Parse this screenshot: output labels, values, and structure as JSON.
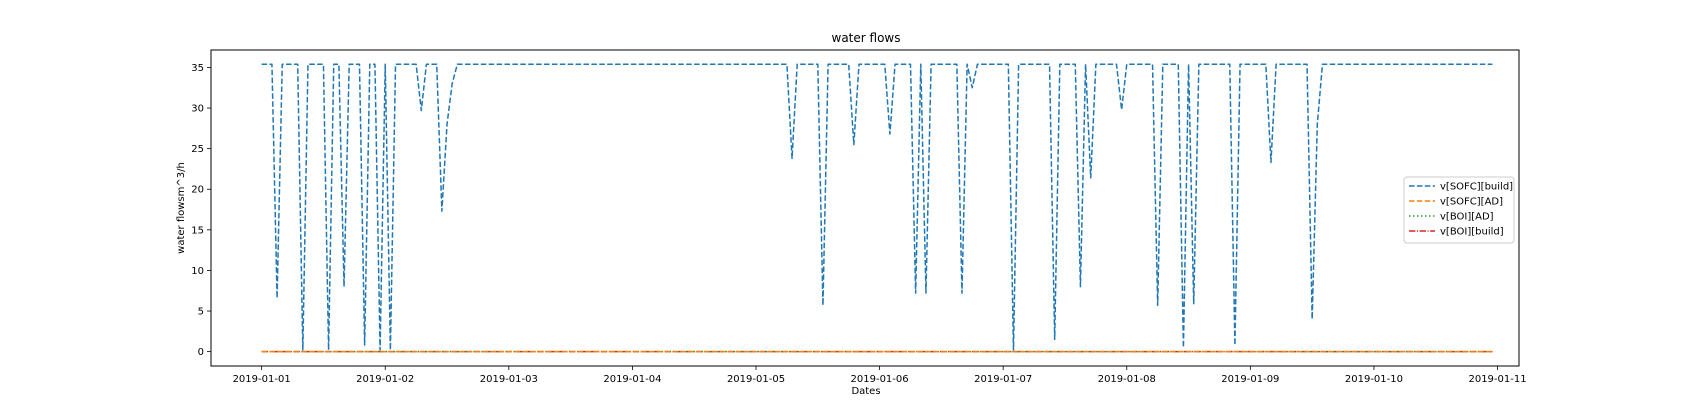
{
  "chart_data": {
    "type": "line",
    "title": "water flows",
    "xlabel": "Dates",
    "ylabel": "water flowsm^3/h",
    "x_type": "date",
    "xlim": [
      "2018-12-31T14:10",
      "2019-01-11T04:10"
    ],
    "ylim": [
      -1.77,
      37.15
    ],
    "x_ticks": [
      "2019-01-01",
      "2019-01-02",
      "2019-01-03",
      "2019-01-04",
      "2019-01-05",
      "2019-01-06",
      "2019-01-07",
      "2019-01-08",
      "2019-01-09",
      "2019-01-10",
      "2019-01-11"
    ],
    "y_ticks": [
      0,
      5,
      10,
      15,
      20,
      25,
      30,
      35
    ],
    "grid": false,
    "legend_position": "center-right",
    "series": [
      {
        "name": "v[SOFC][build]",
        "color": "#1f77b4",
        "style": "dashed",
        "points": [
          [
            "2019-01-01T00:00",
            35.4
          ],
          [
            "2019-01-01T02:00",
            35.4
          ],
          [
            "2019-01-01T03:00",
            6.6
          ],
          [
            "2019-01-01T04:00",
            35.4
          ],
          [
            "2019-01-01T07:00",
            35.4
          ],
          [
            "2019-01-01T08:00",
            0.2
          ],
          [
            "2019-01-01T09:00",
            35.4
          ],
          [
            "2019-01-01T12:00",
            35.4
          ],
          [
            "2019-01-01T13:00",
            0.2
          ],
          [
            "2019-01-01T14:00",
            35.4
          ],
          [
            "2019-01-01T15:00",
            35.4
          ],
          [
            "2019-01-01T16:00",
            8.0
          ],
          [
            "2019-01-01T17:00",
            35.4
          ],
          [
            "2019-01-01T19:00",
            35.4
          ],
          [
            "2019-01-01T20:00",
            0.8
          ],
          [
            "2019-01-01T21:00",
            35.4
          ],
          [
            "2019-01-01T22:00",
            35.4
          ],
          [
            "2019-01-01T23:00",
            0.2
          ],
          [
            "2019-01-02T00:00",
            35.4
          ],
          [
            "2019-01-02T01:00",
            0.2
          ],
          [
            "2019-01-02T02:00",
            35.4
          ],
          [
            "2019-01-02T06:00",
            35.4
          ],
          [
            "2019-01-02T07:00",
            29.7
          ],
          [
            "2019-01-02T08:00",
            35.4
          ],
          [
            "2019-01-02T10:00",
            35.4
          ],
          [
            "2019-01-02T11:00",
            17.3
          ],
          [
            "2019-01-02T12:00",
            28.0
          ],
          [
            "2019-01-02T13:00",
            33.0
          ],
          [
            "2019-01-02T14:00",
            35.4
          ],
          [
            "2019-01-05T06:00",
            35.4
          ],
          [
            "2019-01-05T07:00",
            23.8
          ],
          [
            "2019-01-05T08:00",
            35.4
          ],
          [
            "2019-01-05T12:00",
            35.4
          ],
          [
            "2019-01-05T13:00",
            5.7
          ],
          [
            "2019-01-05T14:00",
            35.4
          ],
          [
            "2019-01-05T18:00",
            35.4
          ],
          [
            "2019-01-05T19:00",
            25.5
          ],
          [
            "2019-01-05T20:00",
            35.4
          ],
          [
            "2019-01-06T01:00",
            35.4
          ],
          [
            "2019-01-06T02:00",
            26.8
          ],
          [
            "2019-01-06T03:00",
            35.4
          ],
          [
            "2019-01-06T06:00",
            35.4
          ],
          [
            "2019-01-06T07:00",
            7.2
          ],
          [
            "2019-01-06T08:00",
            35.4
          ],
          [
            "2019-01-06T09:00",
            7.2
          ],
          [
            "2019-01-06T10:00",
            35.4
          ],
          [
            "2019-01-06T15:00",
            35.4
          ],
          [
            "2019-01-06T16:00",
            7.2
          ],
          [
            "2019-01-06T17:00",
            35.4
          ],
          [
            "2019-01-06T18:00",
            32.5
          ],
          [
            "2019-01-06T19:00",
            35.4
          ],
          [
            "2019-01-07T01:00",
            35.4
          ],
          [
            "2019-01-07T02:00",
            0.2
          ],
          [
            "2019-01-07T03:00",
            35.4
          ],
          [
            "2019-01-07T09:00",
            35.4
          ],
          [
            "2019-01-07T10:00",
            1.5
          ],
          [
            "2019-01-07T11:00",
            35.4
          ],
          [
            "2019-01-07T14:00",
            35.4
          ],
          [
            "2019-01-07T15:00",
            8.0
          ],
          [
            "2019-01-07T16:00",
            35.4
          ],
          [
            "2019-01-07T17:00",
            21.4
          ],
          [
            "2019-01-07T18:00",
            35.4
          ],
          [
            "2019-01-07T22:00",
            35.4
          ],
          [
            "2019-01-07T23:00",
            29.8
          ],
          [
            "2019-01-08T00:00",
            35.4
          ],
          [
            "2019-01-08T05:00",
            35.4
          ],
          [
            "2019-01-08T06:00",
            5.7
          ],
          [
            "2019-01-08T07:00",
            35.4
          ],
          [
            "2019-01-08T10:00",
            35.4
          ],
          [
            "2019-01-08T11:00",
            0.5
          ],
          [
            "2019-01-08T12:00",
            35.4
          ],
          [
            "2019-01-08T13:00",
            5.9
          ],
          [
            "2019-01-08T14:00",
            35.4
          ],
          [
            "2019-01-08T20:00",
            35.4
          ],
          [
            "2019-01-08T21:00",
            0.8
          ],
          [
            "2019-01-08T22:00",
            35.4
          ],
          [
            "2019-01-09T03:00",
            35.4
          ],
          [
            "2019-01-09T04:00",
            23.3
          ],
          [
            "2019-01-09T05:00",
            35.4
          ],
          [
            "2019-01-09T11:00",
            35.4
          ],
          [
            "2019-01-09T12:00",
            4.0
          ],
          [
            "2019-01-09T13:00",
            28.0
          ],
          [
            "2019-01-09T14:00",
            35.4
          ],
          [
            "2019-01-10T23:00",
            35.4
          ]
        ]
      },
      {
        "name": "v[SOFC][AD]",
        "color": "#ff7f0e",
        "style": "dashed",
        "points": [
          [
            "2019-01-01T00:00",
            0
          ],
          [
            "2019-01-10T23:00",
            0
          ]
        ]
      },
      {
        "name": "v[BOI][AD]",
        "color": "#2ca02c",
        "style": "dotted",
        "points": [
          [
            "2019-01-01T00:00",
            0
          ],
          [
            "2019-01-10T23:00",
            0
          ]
        ]
      },
      {
        "name": "v[BOI][build]",
        "color": "#d62728",
        "style": "dashdot",
        "points": [
          [
            "2019-01-01T00:00",
            0
          ],
          [
            "2019-01-10T23:00",
            0
          ]
        ]
      }
    ]
  }
}
